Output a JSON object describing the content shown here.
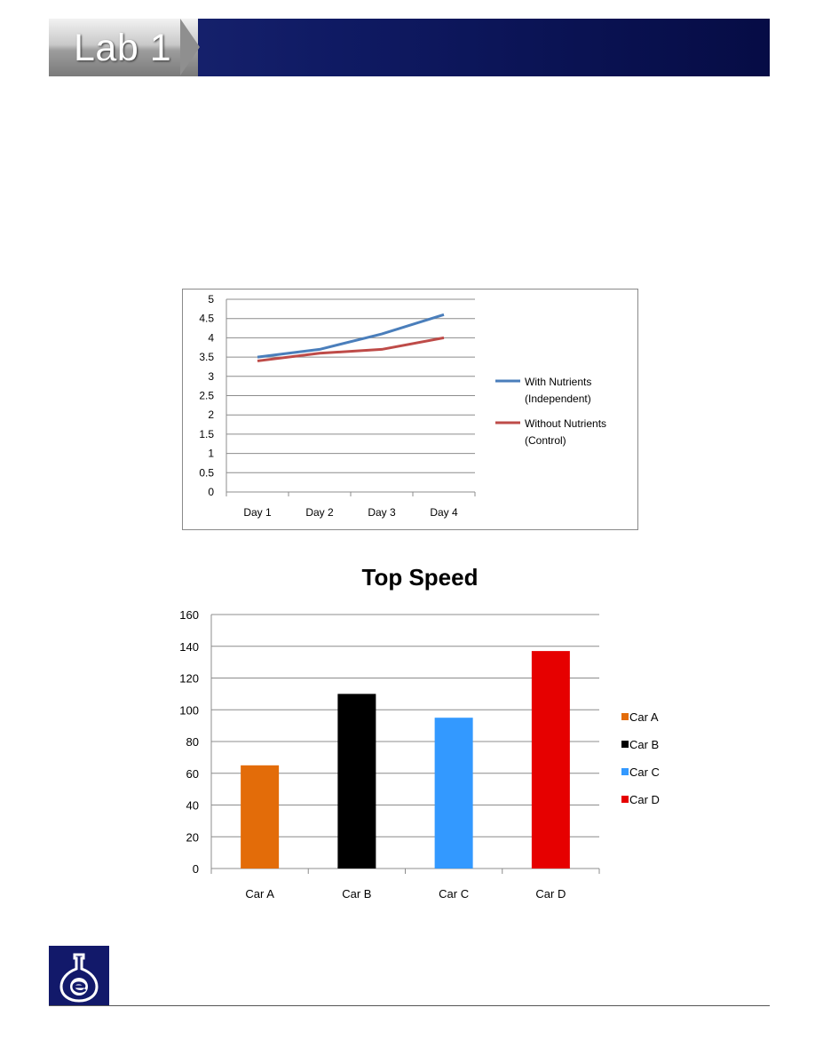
{
  "header": {
    "title": "Lab 1"
  },
  "colors": {
    "header_blue": "#0f1a63",
    "with_nutrients": "#4a7ebb",
    "without_nutrients": "#be4b48"
  },
  "chart_data": [
    {
      "type": "line",
      "categories": [
        "Day 1",
        "Day 2",
        "Day 3",
        "Day 4"
      ],
      "series": [
        {
          "name": "With Nutrients (Independent)",
          "name_lines": [
            "With Nutrients",
            "(Independent)"
          ],
          "values": [
            3.5,
            3.7,
            4.1,
            4.6
          ],
          "color": "#4a7ebb"
        },
        {
          "name": "Without Nutrients (Control)",
          "name_lines": [
            "Without Nutrients",
            "(Control)"
          ],
          "values": [
            3.4,
            3.6,
            3.7,
            4.0
          ],
          "color": "#be4b48"
        }
      ],
      "ylim": [
        0,
        5
      ],
      "yticks": [
        "0",
        "0.5",
        "1",
        "1.5",
        "2",
        "2.5",
        "3",
        "3.5",
        "4",
        "4.5",
        "5"
      ],
      "grid": true,
      "legend": "right"
    },
    {
      "type": "bar",
      "title": "Top Speed",
      "categories": [
        "Car A",
        "Car B",
        "Car C",
        "Car D"
      ],
      "values": [
        65,
        110,
        95,
        137
      ],
      "colors": [
        "#e36c09",
        "#000000",
        "#3399ff",
        "#e60000"
      ],
      "ylim": [
        0,
        160
      ],
      "yticks": [
        "0",
        "20",
        "40",
        "60",
        "80",
        "100",
        "120",
        "140",
        "160"
      ],
      "grid": true,
      "legend": "right"
    }
  ]
}
